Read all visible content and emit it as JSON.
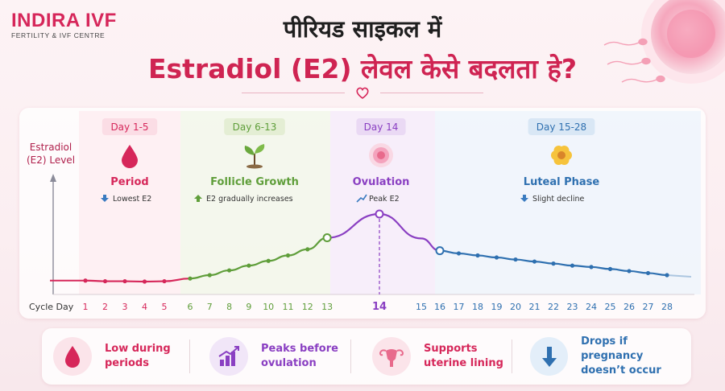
{
  "brand": {
    "name": "INDIRA IVF",
    "tagline": "FERTILITY & IVF CENTRE"
  },
  "title_line1": "पीरियड साइकल में",
  "title_line2": "Estradiol (E2) लेवल केसे बदलता हे?",
  "colors": {
    "period": "#d6275a",
    "follicle": "#5f9e3a",
    "ovulation": "#8a3fc2",
    "luteal": "#2f70b0"
  },
  "chart_data": {
    "type": "line",
    "ylabel": [
      "Estradiol",
      "(E2) Level"
    ],
    "xlabel": "Cycle Day",
    "x": [
      1,
      2,
      3,
      4,
      5,
      6,
      7,
      8,
      9,
      10,
      11,
      12,
      13,
      14,
      15,
      16,
      17,
      18,
      19,
      20,
      21,
      22,
      23,
      24,
      25,
      26,
      27,
      28
    ],
    "y": [
      2,
      1,
      1,
      0.5,
      1,
      5,
      10,
      17,
      24,
      31,
      39,
      48,
      65,
      100,
      64,
      46,
      42,
      39,
      36,
      33,
      30,
      27,
      24,
      22,
      19,
      16,
      13,
      10
    ],
    "ylim": [
      0,
      105
    ],
    "phases": [
      {
        "key": "period",
        "days": "Day 1-5",
        "name": "Period",
        "trend": "Lowest E2",
        "trend_icon": "arrow-down-icon",
        "icon": "blood-drop-icon"
      },
      {
        "key": "follicle",
        "days": "Day 6-13",
        "name": "Follicle Growth",
        "trend": "E2 gradually increases",
        "trend_icon": "arrow-up-icon",
        "icon": "sprout-icon"
      },
      {
        "key": "ovulation",
        "days": "Day 14",
        "name": "Ovulation",
        "trend": "Peak E2",
        "trend_icon": "trend-up-icon",
        "icon": "egg-cell-icon"
      },
      {
        "key": "luteal",
        "days": "Day 15-28",
        "name": "Luteal Phase",
        "trend": "Slight decline",
        "trend_icon": "arrow-down-icon",
        "icon": "flower-icon"
      }
    ]
  },
  "facts": [
    {
      "text": "Low during\nperiods",
      "icon": "blood-drop-icon"
    },
    {
      "text": "Peaks before\novulation",
      "icon": "bar-growth-icon"
    },
    {
      "text": "Supports\nuterine lining",
      "icon": "uterus-icon"
    },
    {
      "text": "Drops if pregnancy\ndoesn’t occur",
      "icon": "arrow-down-icon"
    }
  ]
}
